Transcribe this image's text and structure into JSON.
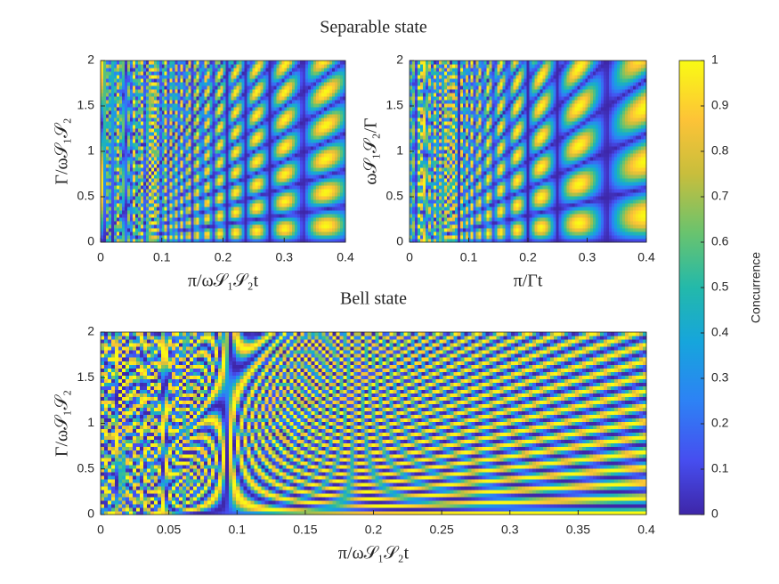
{
  "chart_data": [
    {
      "type": "heatmap",
      "title": "Separable state",
      "xlabel": "π/ω𝒮₁𝒮₂t",
      "ylabel": "Γ/ω𝒮₁𝒮₂",
      "xlim": [
        0,
        0.4
      ],
      "ylim": [
        0,
        2
      ],
      "xticks": [
        0,
        0.1,
        0.2,
        0.3,
        0.4
      ],
      "yticks": [
        0,
        0.5,
        1,
        1.5,
        2
      ]
    },
    {
      "type": "heatmap",
      "xlabel": "π/Γt",
      "ylabel": "ω𝒮₁𝒮₂/Γ",
      "xlim": [
        0,
        0.4
      ],
      "ylim": [
        0,
        2
      ],
      "xticks": [
        0,
        0.1,
        0.2,
        0.3,
        0.4
      ],
      "yticks": [
        0,
        0.5,
        1,
        1.5,
        2
      ]
    },
    {
      "type": "heatmap",
      "title": "Bell state",
      "xlabel": "π/ω𝒮₁𝒮₂t",
      "ylabel": "Γ/ω𝒮₁𝒮₂",
      "xlim": [
        0,
        0.4
      ],
      "ylim": [
        0,
        2
      ],
      "xticks": [
        0,
        0.05,
        0.1,
        0.15,
        0.2,
        0.25,
        0.3,
        0.35,
        0.4
      ],
      "yticks": [
        0,
        0.5,
        1,
        1.5,
        2
      ]
    }
  ],
  "colorbar": {
    "label": "Concurrence",
    "clim": [
      0,
      1
    ],
    "ticks": [
      0,
      0.1,
      0.2,
      0.3,
      0.4,
      0.5,
      0.6,
      0.7,
      0.8,
      0.9,
      1
    ]
  }
}
